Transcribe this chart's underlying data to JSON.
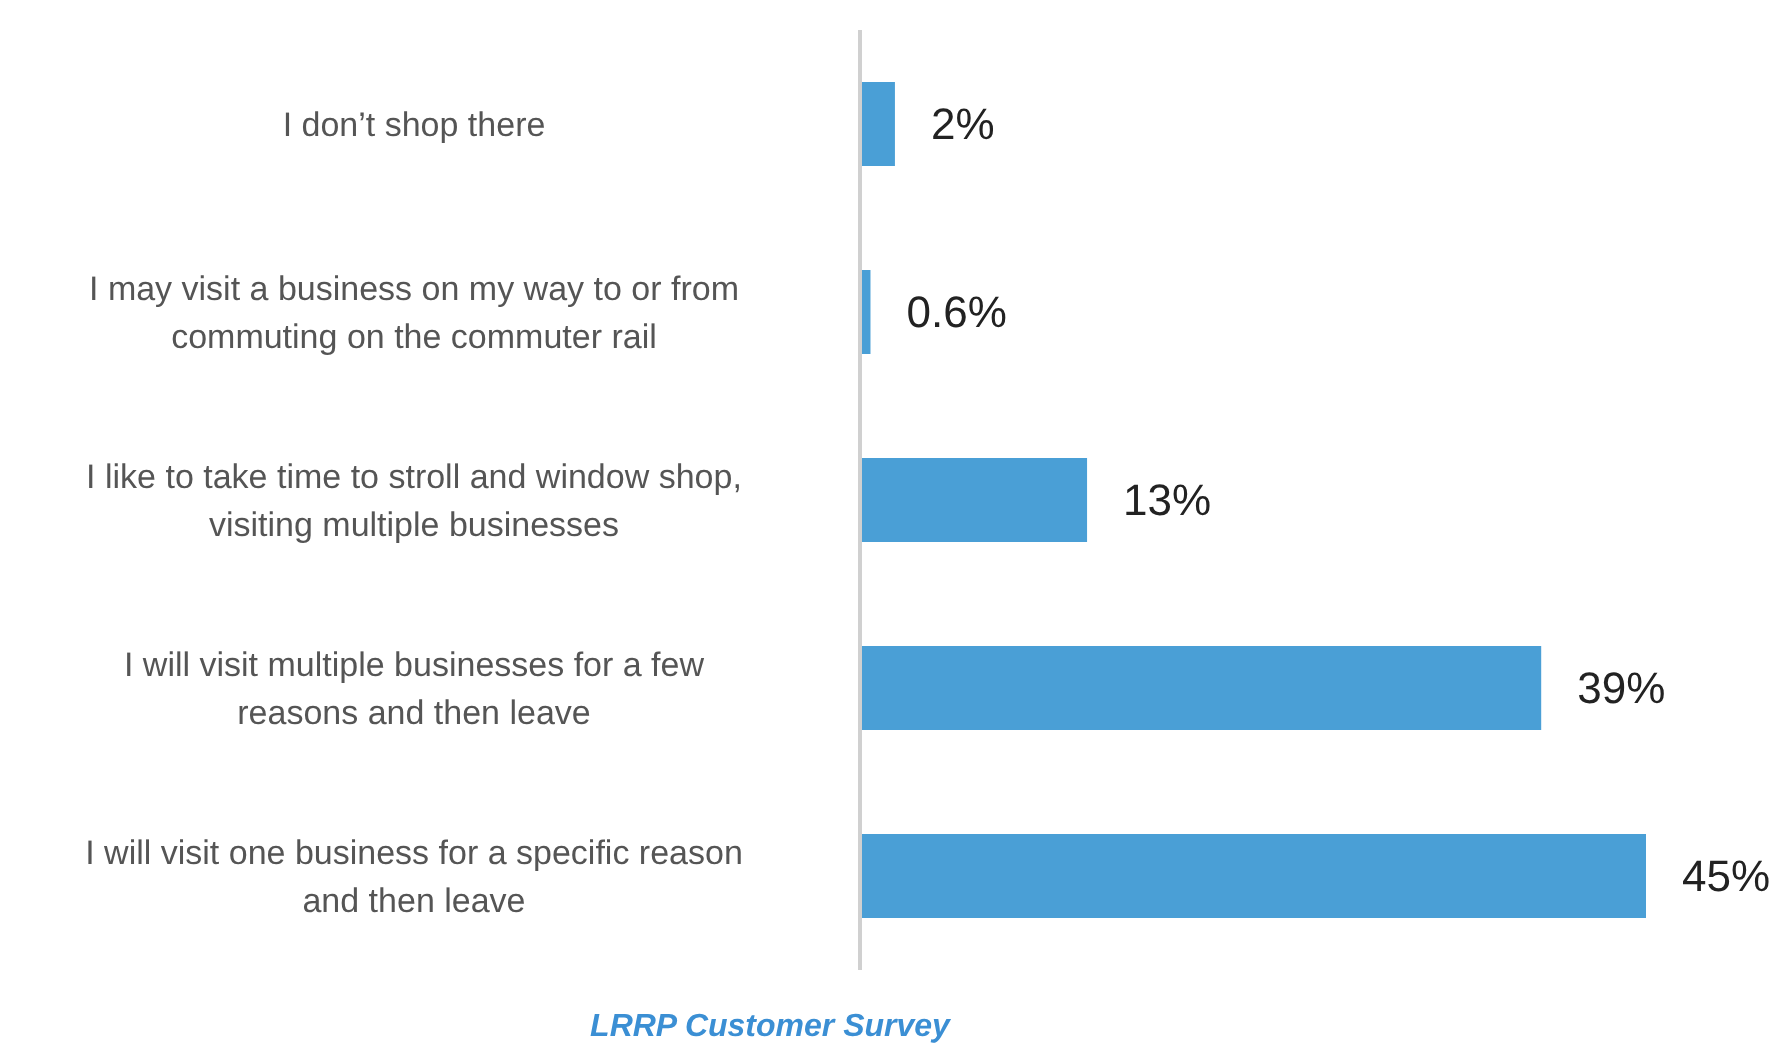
{
  "chart_data": {
    "type": "bar",
    "orientation": "horizontal",
    "categories": [
      "I don’t shop there",
      "I may visit a business on my way to or from commuting on the commuter rail",
      "I like to take time to stroll and window shop, visiting multiple businesses",
      "I will visit multiple businesses for a few reasons and then leave",
      "I will visit one business for a specific reason and then leave"
    ],
    "values": [
      2,
      0.6,
      13,
      39,
      45
    ],
    "value_labels": [
      "2%",
      "0.6%",
      "13%",
      "39%",
      "45%"
    ],
    "color": "#4a9fd6",
    "annotations": [
      "LRRP Customer Survey"
    ],
    "grid": false,
    "legend": false
  }
}
